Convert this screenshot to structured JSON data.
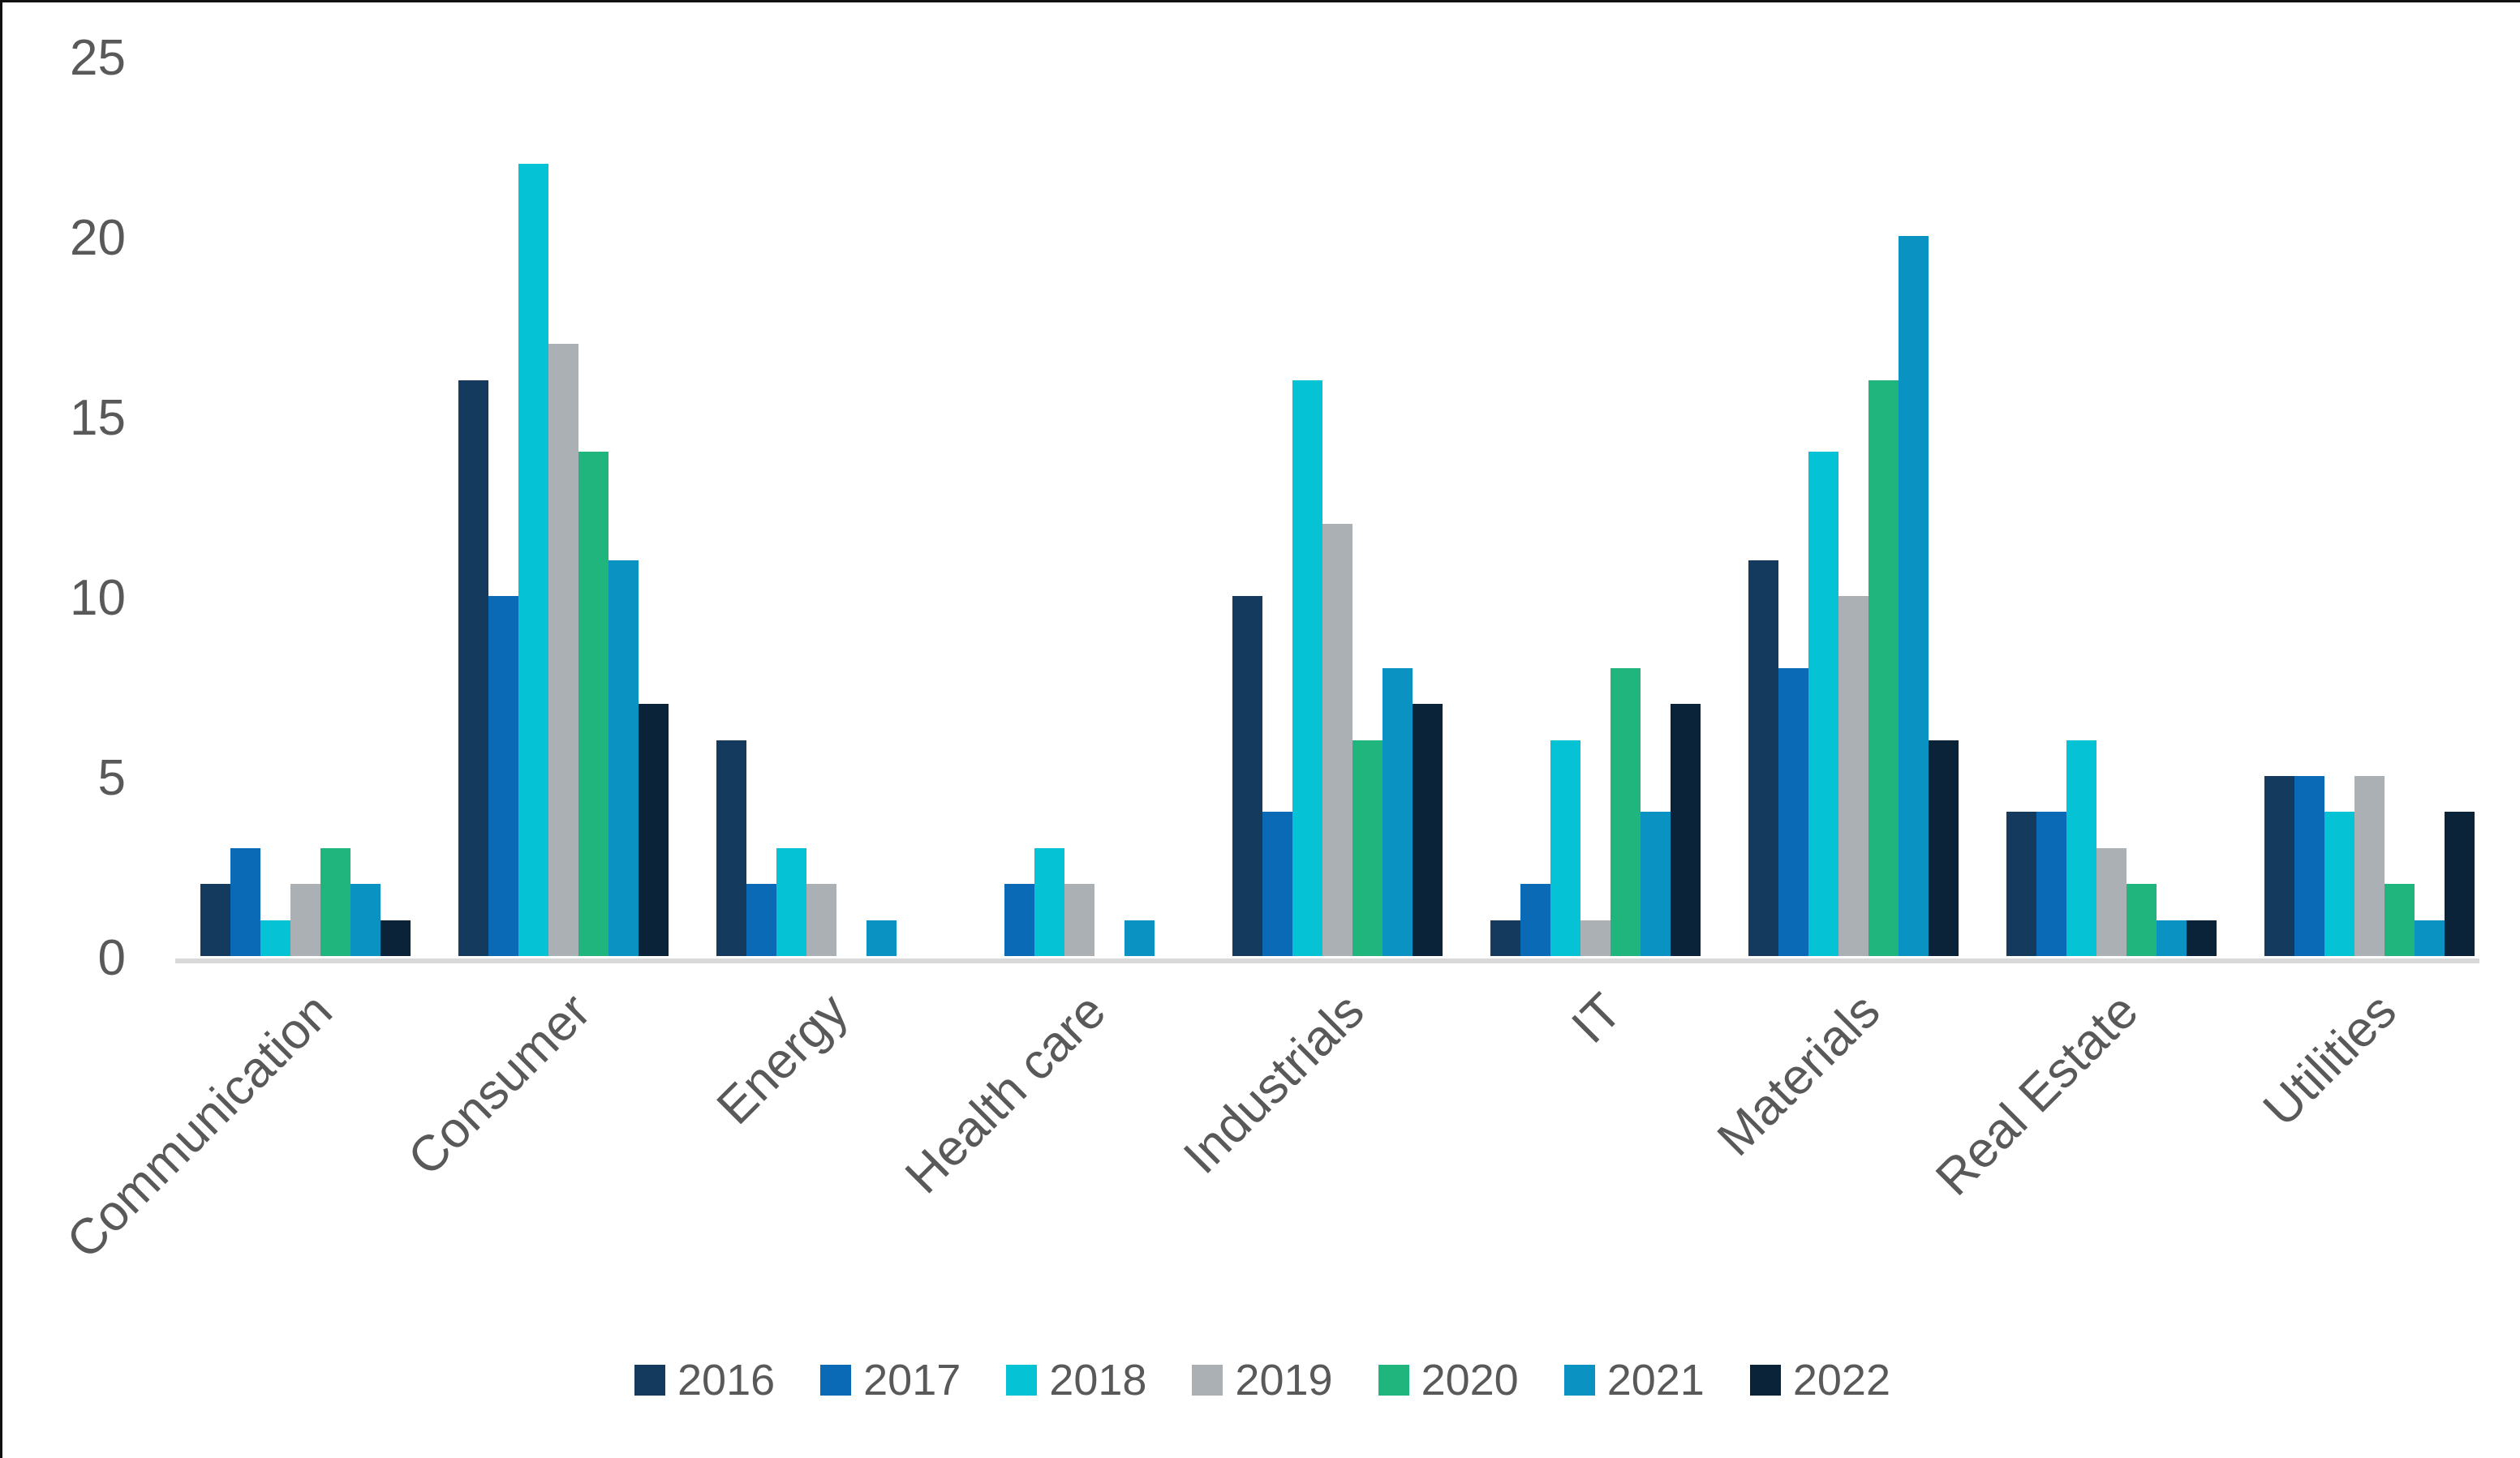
{
  "chart_data": {
    "type": "bar",
    "title": "",
    "categories": [
      "Communication",
      "Consumer",
      "Energy",
      "Health care",
      "Industrials",
      "IT",
      "Materials",
      "Real Estate",
      "Utilities"
    ],
    "series": [
      {
        "name": "2016",
        "color": "#143a5e",
        "values": [
          2,
          16,
          6,
          0,
          10,
          1,
          11,
          4,
          5
        ]
      },
      {
        "name": "2017",
        "color": "#0a6ab5",
        "values": [
          3,
          10,
          2,
          2,
          4,
          2,
          8,
          4,
          5
        ]
      },
      {
        "name": "2018",
        "color": "#05c3d5",
        "values": [
          1,
          22,
          3,
          3,
          16,
          6,
          14,
          6,
          4
        ]
      },
      {
        "name": "2019",
        "color": "#abb0b4",
        "values": [
          2,
          17,
          2,
          2,
          12,
          1,
          10,
          3,
          5
        ]
      },
      {
        "name": "2020",
        "color": "#20b57d",
        "values": [
          3,
          14,
          0,
          0,
          6,
          8,
          16,
          2,
          2
        ]
      },
      {
        "name": "2021",
        "color": "#0a92c3",
        "values": [
          2,
          11,
          1,
          1,
          8,
          4,
          20,
          1,
          1
        ]
      },
      {
        "name": "2022",
        "color": "#0b2338",
        "values": [
          1,
          7,
          0,
          0,
          7,
          7,
          6,
          1,
          4
        ]
      }
    ],
    "yticks": [
      0,
      5,
      10,
      15,
      20,
      25
    ],
    "ylim": [
      0,
      25
    ],
    "grid": false,
    "legend_position": "bottom",
    "axis_line_color": "#d9d9d9",
    "text_color": "#595959"
  }
}
